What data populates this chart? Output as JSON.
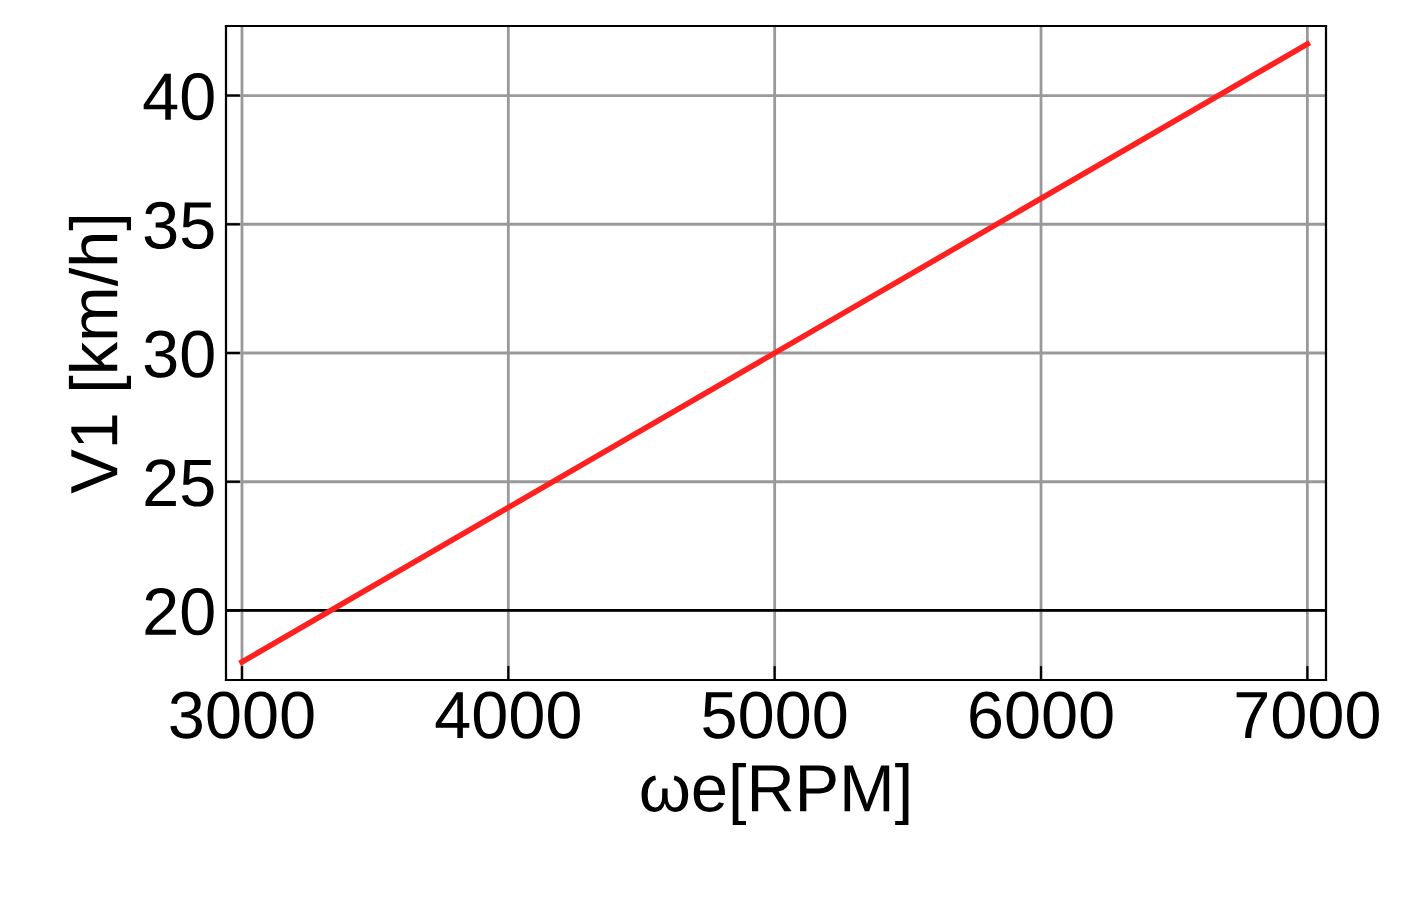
{
  "chart_data": {
    "type": "line",
    "xlabel": "ωe[RPM]",
    "ylabel": "V1 [km/h]",
    "x": [
      3000,
      7000
    ],
    "series": [
      {
        "color": "#ff2020",
        "values": [
          18,
          42
        ]
      }
    ],
    "xlim": [
      2940,
      7070
    ],
    "ylim": [
      17.3,
      42.7
    ],
    "xticks": [
      3000,
      4000,
      5000,
      6000,
      7000
    ],
    "yticks": [
      20,
      25,
      30,
      35,
      40
    ],
    "grid": true,
    "marker": "none",
    "line_style": "solid",
    "ref_lines": [
      {
        "axis": "y",
        "value": 20,
        "color": "#000000"
      }
    ]
  }
}
